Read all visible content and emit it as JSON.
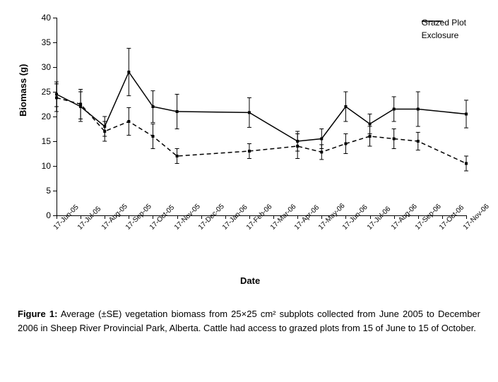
{
  "chart": {
    "type": "line",
    "y_title": "Biomass (g)",
    "x_title": "Date",
    "ylim": [
      0,
      40
    ],
    "ytick_step": 5,
    "background_color": "#ffffff",
    "x_labels": [
      "17-Jun-05",
      "17-Jul-05",
      "17-Aug-05",
      "17-Sep-05",
      "17-Oct-05",
      "17-Nov-05",
      "17-Dec-05",
      "17-Jan-06",
      "17-Feb-06",
      "17-Mar-06",
      "17-Apr-06",
      "17-May-06",
      "17-Jun-06",
      "17-Jul-06",
      "17-Aug-06",
      "17-Sep-06",
      "17-Oct-06",
      "17-Nov-06"
    ],
    "series": [
      {
        "name": "Grazed Plot",
        "color": "#000000",
        "dash": "6,4",
        "line_width": 1.5,
        "marker": "square",
        "marker_size": 4,
        "points": [
          {
            "i": 0,
            "y": 23.8,
            "se": 2.8
          },
          {
            "i": 1,
            "y": 22.5,
            "se": 3.0
          },
          {
            "i": 2,
            "y": 17.0,
            "se": 2.0
          },
          {
            "i": 3,
            "y": 19.0,
            "se": 2.8
          },
          {
            "i": 4,
            "y": 16.0,
            "se": 2.5
          },
          {
            "i": 5,
            "y": 12.0,
            "se": 1.5
          },
          {
            "i": 8,
            "y": 13.0,
            "se": 1.5
          },
          {
            "i": 10,
            "y": 14.0,
            "se": 2.5
          },
          {
            "i": 11,
            "y": 12.8,
            "se": 1.5
          },
          {
            "i": 12,
            "y": 14.5,
            "se": 2.0
          },
          {
            "i": 13,
            "y": 16.0,
            "se": 2.0
          },
          {
            "i": 14,
            "y": 15.5,
            "se": 2.0
          },
          {
            "i": 15,
            "y": 15.0,
            "se": 1.8
          },
          {
            "i": 17,
            "y": 10.5,
            "se": 1.5
          }
        ]
      },
      {
        "name": "Exclosure",
        "color": "#000000",
        "dash": "none",
        "line_width": 1.5,
        "marker": "square",
        "marker_size": 4,
        "points": [
          {
            "i": 0,
            "y": 24.5,
            "se": 2.5
          },
          {
            "i": 1,
            "y": 22.0,
            "se": 3.0
          },
          {
            "i": 2,
            "y": 18.0,
            "se": 2.0
          },
          {
            "i": 3,
            "y": 29.0,
            "se": 4.8
          },
          {
            "i": 4,
            "y": 22.0,
            "se": 3.2
          },
          {
            "i": 5,
            "y": 21.0,
            "se": 3.5
          },
          {
            "i": 8,
            "y": 20.8,
            "se": 3.0
          },
          {
            "i": 10,
            "y": 15.0,
            "se": 2.0
          },
          {
            "i": 11,
            "y": 15.5,
            "se": 2.0
          },
          {
            "i": 12,
            "y": 22.0,
            "se": 3.0
          },
          {
            "i": 13,
            "y": 18.5,
            "se": 2.0
          },
          {
            "i": 14,
            "y": 21.5,
            "se": 2.5
          },
          {
            "i": 15,
            "y": 21.5,
            "se": 3.5
          },
          {
            "i": 17,
            "y": 20.5,
            "se": 2.8
          }
        ]
      }
    ]
  },
  "legend": {
    "items": [
      {
        "label": "Grazed Plot",
        "dash": "6,4"
      },
      {
        "label": "Exclosure",
        "dash": "none"
      }
    ]
  },
  "caption": {
    "label": "Figure 1:",
    "text": "Average (±SE) vegetation biomass from 25×25 cm² subplots collected from June 2005 to December 2006 in Sheep River Provincial Park, Alberta. Cattle had access to grazed plots from 15 of June to 15 of October."
  }
}
